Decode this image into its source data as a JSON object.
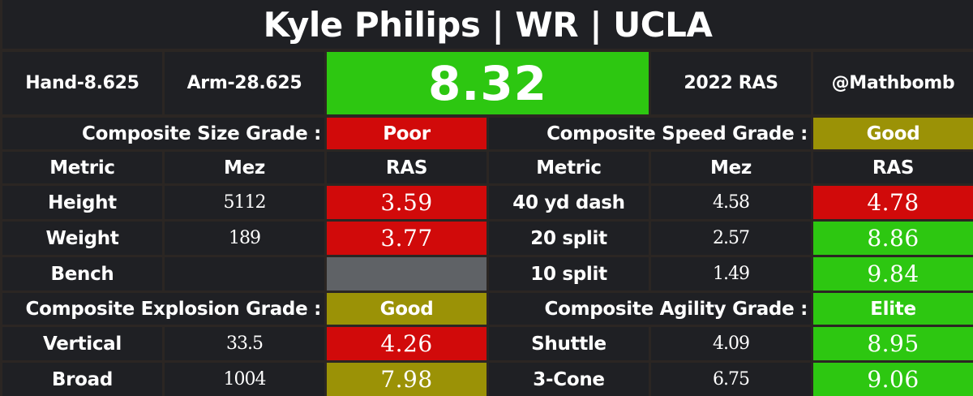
{
  "title": "Kyle Philips | WR | UCLA",
  "header": {
    "hand": "Hand-8.625",
    "arm": "Arm-28.625",
    "ras_score": "8.32",
    "year_ras": "2022 RAS",
    "handle": "@Mathbomb"
  },
  "grades": {
    "size_label": "Composite Size Grade :",
    "size_value": "Poor",
    "speed_label": "Composite Speed Grade :",
    "speed_value": "Good",
    "explosion_label": "Composite Explosion Grade :",
    "explosion_value": "Good",
    "agility_label": "Composite Agility Grade :",
    "agility_value": "Elite"
  },
  "columns": {
    "metric": "Metric",
    "mez": "Mez",
    "ras": "RAS"
  },
  "size_rows": [
    {
      "metric": "Height",
      "mez": "5112",
      "ras": "3.59"
    },
    {
      "metric": "Weight",
      "mez": "189",
      "ras": "3.77"
    },
    {
      "metric": "Bench",
      "mez": "",
      "ras": ""
    }
  ],
  "speed_rows": [
    {
      "metric": "40 yd dash",
      "mez": "4.58",
      "ras": "4.78"
    },
    {
      "metric": "20 split",
      "mez": "2.57",
      "ras": "8.86"
    },
    {
      "metric": "10 split",
      "mez": "1.49",
      "ras": "9.84"
    }
  ],
  "explosion_rows": [
    {
      "metric": "Vertical",
      "mez": "33.5",
      "ras": "4.26"
    },
    {
      "metric": "Broad",
      "mez": "1004",
      "ras": "7.98"
    }
  ],
  "agility_rows": [
    {
      "metric": "Shuttle",
      "mez": "4.09",
      "ras": "8.95"
    },
    {
      "metric": "3-Cone",
      "mez": "6.75",
      "ras": "9.06"
    }
  ],
  "colors": {
    "elite": "#2dc711",
    "poor": "#d10a0a",
    "good": "#9b9206",
    "missing": "#5f6266",
    "cell_bg": "#1f2024"
  }
}
